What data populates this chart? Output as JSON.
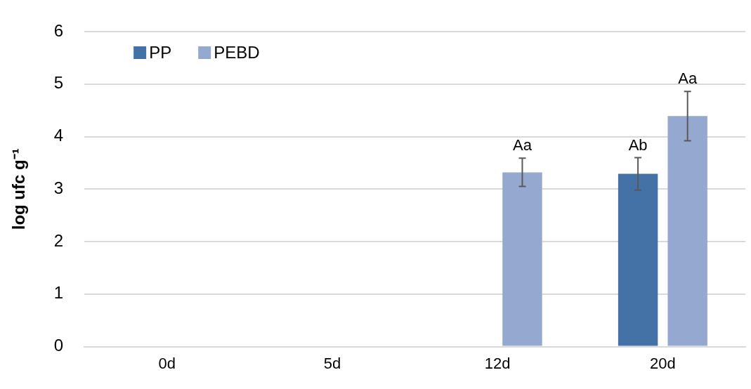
{
  "chart_data": {
    "type": "bar",
    "ylabel": "log ufc g⁻¹",
    "categories": [
      "0d",
      "5d",
      "12d",
      "20d"
    ],
    "series": [
      {
        "name": "PP",
        "color": "#4472a6",
        "values": [
          0,
          0,
          0,
          3.29
        ],
        "errors": [
          null,
          null,
          null,
          0.31
        ],
        "value_labels": [
          null,
          null,
          null,
          "Ab"
        ]
      },
      {
        "name": "PEBD",
        "color": "#95a9d0",
        "values": [
          0,
          0,
          3.32,
          4.39
        ],
        "errors": [
          null,
          null,
          0.27,
          0.47
        ],
        "value_labels": [
          null,
          null,
          "Aa",
          "Aa"
        ]
      }
    ],
    "ylim": [
      0,
      6
    ],
    "yticks": [
      0,
      1,
      2,
      3,
      4,
      5,
      6
    ],
    "grid": "y",
    "legend": "top left"
  }
}
